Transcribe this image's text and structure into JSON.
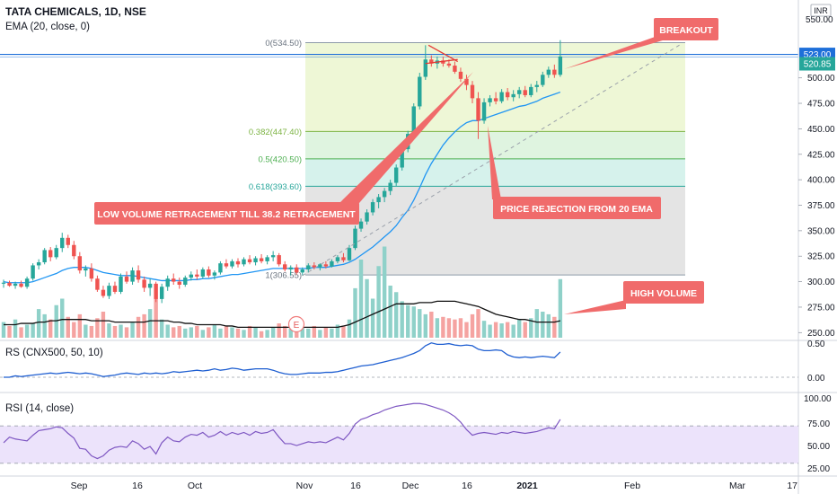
{
  "colors": {
    "up": "#26a69a",
    "down": "#ef5350",
    "ema": "#2196f3",
    "price_line": "#1e6fd9",
    "rs": "#1f5fd1",
    "rsi": "#7e57c2",
    "rsi_band": "#ece3fb",
    "callout": "#f06b6b",
    "fib_frame": "#9aa6b2"
  },
  "header": {
    "symbol_line": "TATA CHEMICALS, 1D, NSE",
    "ema_line": "EMA (20, close, 0)",
    "currency": "INR"
  },
  "rs_panel": {
    "title": "RS (CNX500, 50, 10)",
    "ticks": [
      "0.50",
      "0.00"
    ]
  },
  "rsi_panel": {
    "title": "RSI (14, close)",
    "ticks": [
      "100.00",
      "75.00",
      "50.00",
      "25.00"
    ]
  },
  "earnings_badge": "E",
  "chart_data": {
    "type": "candlestick",
    "price_axis": {
      "ticks": [
        250,
        275,
        300,
        325,
        350,
        375,
        400,
        425,
        450,
        475,
        500
      ],
      "top_label": "550.00",
      "min": 245,
      "max": 557
    },
    "price_line": {
      "value": 523.0,
      "label": "523.00"
    },
    "current_label": {
      "value": 520.85,
      "label": "520.85"
    },
    "x_axis": {
      "labels": [
        "Sep",
        "16",
        "Oct",
        "Nov",
        "16",
        "Dec",
        "16",
        "2021",
        "Feb",
        "Mar",
        "17"
      ],
      "bold": [
        "2021"
      ]
    },
    "fib_levels": [
      {
        "ratio": "0",
        "price": 534.5,
        "label": "0(534.50)"
      },
      {
        "ratio": "0.382",
        "price": 447.4,
        "label": "0.382(447.40)"
      },
      {
        "ratio": "0.5",
        "price": 420.5,
        "label": "0.5(420.50)"
      },
      {
        "ratio": "0.618",
        "price": 393.6,
        "label": "0.618(393.60)"
      },
      {
        "ratio": "1",
        "price": 306.55,
        "label": "1(306.55)"
      }
    ],
    "ohlc": [
      [
        298,
        302,
        294,
        299
      ],
      [
        299,
        301,
        295,
        296
      ],
      [
        296,
        300,
        293,
        298
      ],
      [
        298,
        301,
        294,
        295
      ],
      [
        295,
        305,
        293,
        303
      ],
      [
        303,
        318,
        301,
        316
      ],
      [
        316,
        322,
        312,
        319
      ],
      [
        319,
        333,
        317,
        331
      ],
      [
        331,
        334,
        320,
        324
      ],
      [
        324,
        336,
        322,
        333
      ],
      [
        333,
        348,
        329,
        343
      ],
      [
        343,
        346,
        333,
        336
      ],
      [
        336,
        340,
        322,
        325
      ],
      [
        325,
        329,
        308,
        311
      ],
      [
        311,
        316,
        305,
        313
      ],
      [
        313,
        318,
        300,
        303
      ],
      [
        303,
        306,
        290,
        292
      ],
      [
        292,
        296,
        284,
        286
      ],
      [
        286,
        299,
        283,
        296
      ],
      [
        296,
        300,
        288,
        290
      ],
      [
        290,
        308,
        288,
        305
      ],
      [
        305,
        310,
        298,
        300
      ],
      [
        300,
        314,
        297,
        311
      ],
      [
        311,
        316,
        299,
        302
      ],
      [
        302,
        305,
        290,
        294
      ],
      [
        294,
        303,
        286,
        298
      ],
      [
        298,
        300,
        280,
        283
      ],
      [
        283,
        298,
        279,
        295
      ],
      [
        295,
        306,
        291,
        303
      ],
      [
        303,
        308,
        297,
        300
      ],
      [
        300,
        304,
        293,
        297
      ],
      [
        297,
        306,
        295,
        304
      ],
      [
        304,
        310,
        301,
        307
      ],
      [
        307,
        312,
        302,
        305
      ],
      [
        305,
        314,
        303,
        312
      ],
      [
        312,
        315,
        304,
        306
      ],
      [
        306,
        311,
        302,
        309
      ],
      [
        309,
        320,
        307,
        318
      ],
      [
        318,
        322,
        313,
        315
      ],
      [
        315,
        322,
        313,
        320
      ],
      [
        320,
        323,
        314,
        317
      ],
      [
        317,
        324,
        315,
        322
      ],
      [
        322,
        326,
        317,
        319
      ],
      [
        319,
        325,
        316,
        323
      ],
      [
        323,
        327,
        318,
        320
      ],
      [
        320,
        326,
        317,
        324
      ],
      [
        324,
        330,
        320,
        326
      ],
      [
        326,
        328,
        315,
        317
      ],
      [
        317,
        320,
        310,
        312
      ],
      [
        312,
        316,
        306,
        314
      ],
      [
        314,
        317,
        307,
        309
      ],
      [
        309,
        314,
        306,
        312
      ],
      [
        312,
        318,
        309,
        316
      ],
      [
        316,
        319,
        312,
        314
      ],
      [
        314,
        318,
        311,
        317
      ],
      [
        317,
        320,
        313,
        315
      ],
      [
        315,
        322,
        314,
        320
      ],
      [
        320,
        326,
        318,
        324
      ],
      [
        324,
        328,
        319,
        321
      ],
      [
        321,
        336,
        320,
        333
      ],
      [
        333,
        355,
        331,
        352
      ],
      [
        352,
        362,
        349,
        359
      ],
      [
        359,
        371,
        356,
        368
      ],
      [
        368,
        381,
        365,
        378
      ],
      [
        378,
        386,
        372,
        383
      ],
      [
        383,
        392,
        378,
        389
      ],
      [
        389,
        400,
        385,
        397
      ],
      [
        397,
        415,
        394,
        412
      ],
      [
        412,
        433,
        409,
        430
      ],
      [
        430,
        448,
        427,
        445
      ],
      [
        445,
        475,
        442,
        472
      ],
      [
        472,
        505,
        469,
        501
      ],
      [
        501,
        532,
        498,
        518
      ],
      [
        518,
        522,
        511,
        514
      ],
      [
        514,
        521,
        509,
        517
      ],
      [
        517,
        521,
        511,
        514
      ],
      [
        514,
        518,
        510,
        512
      ],
      [
        512,
        516,
        504,
        506
      ],
      [
        506,
        510,
        496,
        499
      ],
      [
        499,
        503,
        488,
        493
      ],
      [
        493,
        497,
        475,
        480
      ],
      [
        480,
        486,
        440,
        458
      ],
      [
        458,
        480,
        455,
        476
      ],
      [
        476,
        483,
        472,
        480
      ],
      [
        480,
        486,
        474,
        477
      ],
      [
        477,
        489,
        475,
        486
      ],
      [
        486,
        490,
        478,
        481
      ],
      [
        481,
        488,
        477,
        484
      ],
      [
        484,
        491,
        480,
        488
      ],
      [
        488,
        492,
        481,
        483
      ],
      [
        483,
        494,
        481,
        491
      ],
      [
        491,
        497,
        486,
        493
      ],
      [
        493,
        506,
        491,
        503
      ],
      [
        503,
        511,
        500,
        508
      ],
      [
        508,
        513,
        500,
        503
      ],
      [
        503,
        537,
        501,
        521
      ]
    ],
    "ema": [
      300,
      299,
      299,
      299,
      299,
      300,
      302,
      304,
      306,
      308,
      311,
      313,
      314,
      314,
      314,
      313,
      311,
      309,
      308,
      307,
      306,
      306,
      306,
      305,
      304,
      303,
      302,
      301,
      301,
      301,
      301,
      301,
      302,
      302,
      303,
      303,
      304,
      305,
      306,
      307,
      307,
      308,
      309,
      310,
      311,
      312,
      313,
      313,
      313,
      313,
      313,
      313,
      313,
      314,
      314,
      314,
      315,
      316,
      317,
      319,
      322,
      326,
      330,
      334,
      339,
      344,
      349,
      355,
      363,
      370,
      380,
      392,
      405,
      416,
      425,
      434,
      441,
      447,
      452,
      456,
      458,
      458,
      460,
      462,
      464,
      466,
      468,
      470,
      472,
      473,
      475,
      477,
      480,
      482,
      484,
      486
    ],
    "volume_up_down": [
      1,
      0,
      1,
      0,
      1,
      1,
      1,
      1,
      0,
      1,
      1,
      0,
      0,
      0,
      1,
      0,
      0,
      0,
      1,
      0,
      1,
      0,
      1,
      0,
      0,
      1,
      0,
      1,
      1,
      0,
      0,
      1,
      1,
      0,
      1,
      0,
      1,
      1,
      0,
      1,
      0,
      1,
      0,
      1,
      0,
      1,
      1,
      0,
      0,
      1,
      0,
      1,
      1,
      0,
      1,
      0,
      1,
      1,
      0,
      1,
      1,
      1,
      1,
      1,
      1,
      1,
      1,
      1,
      1,
      1,
      1,
      1,
      1,
      0,
      1,
      0,
      0,
      0,
      0,
      0,
      0,
      0,
      1,
      1,
      0,
      1,
      0,
      1,
      1,
      0,
      1,
      1,
      1,
      1,
      0,
      1
    ],
    "volume": [
      12,
      9,
      14,
      8,
      10,
      11,
      22,
      18,
      14,
      25,
      30,
      16,
      12,
      18,
      10,
      9,
      15,
      20,
      11,
      9,
      10,
      8,
      12,
      16,
      18,
      22,
      30,
      14,
      10,
      8,
      9,
      7,
      8,
      9,
      6,
      8,
      10,
      7,
      9,
      8,
      7,
      6,
      9,
      8,
      5,
      6,
      8,
      11,
      9,
      7,
      6,
      8,
      7,
      9,
      6,
      8,
      7,
      10,
      9,
      14,
      38,
      60,
      45,
      30,
      55,
      70,
      40,
      35,
      28,
      25,
      24,
      22,
      18,
      20,
      15,
      16,
      15,
      14,
      15,
      12,
      18,
      22,
      13,
      10,
      12,
      11,
      12,
      10,
      14,
      12,
      15,
      22,
      20,
      18,
      16,
      45
    ],
    "volume_ma": [
      10,
      10,
      10,
      11,
      11,
      11,
      12,
      12,
      13,
      13,
      14,
      14,
      14,
      14,
      14,
      13,
      13,
      13,
      13,
      12,
      12,
      12,
      12,
      12,
      12,
      13,
      13,
      13,
      13,
      12,
      12,
      11,
      11,
      10,
      10,
      10,
      10,
      10,
      9,
      9,
      8,
      8,
      8,
      8,
      8,
      8,
      8,
      8,
      8,
      8,
      8,
      8,
      8,
      8,
      8,
      8,
      8,
      8,
      9,
      10,
      12,
      14,
      16,
      18,
      20,
      22,
      24,
      26,
      26,
      26,
      26,
      27,
      27,
      27,
      28,
      28,
      28,
      28,
      27,
      26,
      25,
      24,
      22,
      20,
      18,
      17,
      16,
      15,
      14,
      14,
      13,
      12,
      12,
      12,
      12,
      13
    ],
    "rs": [
      0.0,
      0.0,
      0.02,
      0.01,
      0.02,
      0.03,
      0.04,
      0.05,
      0.06,
      0.05,
      0.06,
      0.07,
      0.06,
      0.05,
      0.06,
      0.05,
      0.03,
      0.01,
      0.02,
      0.03,
      0.05,
      0.06,
      0.05,
      0.04,
      0.06,
      0.05,
      0.06,
      0.05,
      0.06,
      0.08,
      0.07,
      0.08,
      0.09,
      0.1,
      0.09,
      0.1,
      0.12,
      0.1,
      0.11,
      0.13,
      0.12,
      0.1,
      0.11,
      0.12,
      0.12,
      0.12,
      0.1,
      0.07,
      0.05,
      0.04,
      0.04,
      0.05,
      0.06,
      0.06,
      0.06,
      0.07,
      0.07,
      0.08,
      0.1,
      0.12,
      0.14,
      0.16,
      0.17,
      0.18,
      0.2,
      0.22,
      0.24,
      0.26,
      0.28,
      0.31,
      0.34,
      0.38,
      0.45,
      0.49,
      0.47,
      0.47,
      0.48,
      0.46,
      0.45,
      0.46,
      0.45,
      0.4,
      0.38,
      0.38,
      0.39,
      0.38,
      0.32,
      0.29,
      0.28,
      0.29,
      0.28,
      0.29,
      0.3,
      0.29,
      0.28,
      0.36
    ],
    "rsi": [
      52,
      58,
      56,
      55,
      54,
      60,
      65,
      66,
      67,
      69,
      68,
      62,
      57,
      46,
      45,
      38,
      35,
      38,
      44,
      47,
      48,
      47,
      54,
      51,
      45,
      48,
      40,
      52,
      58,
      54,
      53,
      58,
      61,
      60,
      63,
      58,
      60,
      64,
      60,
      63,
      61,
      63,
      60,
      64,
      62,
      63,
      66,
      58,
      51,
      51,
      49,
      51,
      53,
      52,
      53,
      52,
      55,
      58,
      55,
      62,
      72,
      77,
      79,
      82,
      84,
      87,
      89,
      91,
      92,
      93,
      94,
      94,
      93,
      91,
      89,
      87,
      84,
      80,
      74,
      66,
      60,
      62,
      63,
      62,
      61,
      63,
      62,
      64,
      63,
      62,
      63,
      64,
      66,
      68,
      67,
      77
    ]
  },
  "annotations": [
    {
      "text": "BREAKOUT"
    },
    {
      "text": "LOW VOLUME RETRACEMENT TILL 38.2 RETRACEMENT"
    },
    {
      "text": "PRICE REJECTION FROM 20 EMA"
    },
    {
      "text": "HIGH VOLUME"
    }
  ]
}
